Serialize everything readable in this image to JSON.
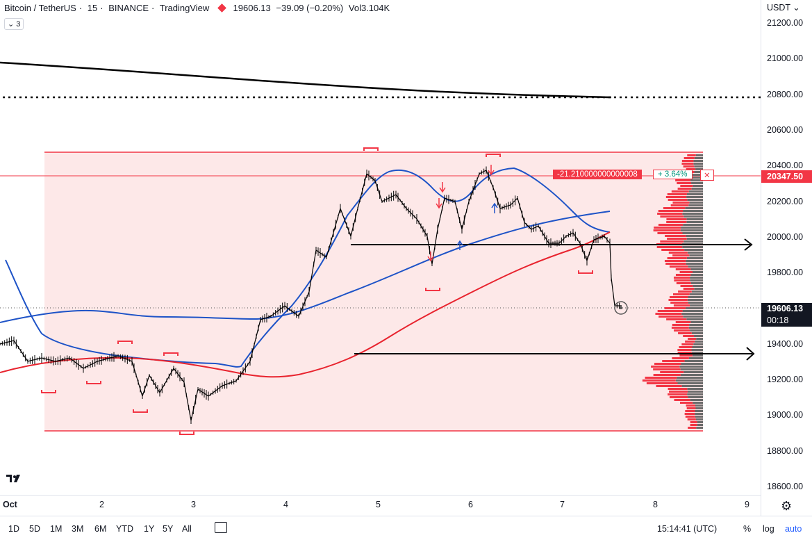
{
  "header": {
    "symbol": "Bitcoin / TetherUS",
    "interval": "15",
    "exchange": "BINANCE",
    "platform": "TradingView",
    "last_price": "19606.13",
    "change": "−39.09 (−0.20%)",
    "volume_label": "Vol",
    "volume": "3.104K",
    "indicators_count": "3"
  },
  "price_axis": {
    "currency": "USDT",
    "ticks": [
      "21200.00",
      "21000.00",
      "20800.00",
      "20600.00",
      "20400.00",
      "20200.00",
      "20000.00",
      "19800.00",
      "19600.00",
      "19400.00",
      "19200.00",
      "19000.00",
      "18800.00",
      "18600.00"
    ],
    "marker_price": "20347.50",
    "current_price": "19606.13",
    "countdown": "00:18"
  },
  "position_box": {
    "pnl": "-21.210000000000008",
    "percent": "+ 3.64%",
    "close_symbol": "✕"
  },
  "time_axis": {
    "labels": [
      "Oct",
      "2",
      "3",
      "4",
      "5",
      "6",
      "7",
      "8",
      "9"
    ]
  },
  "toolbar": {
    "ranges": [
      "1D",
      "5D",
      "1M",
      "3M",
      "6M",
      "YTD",
      "1Y",
      "5Y",
      "All"
    ],
    "clock": "15:14:41 (UTC)",
    "percent": "%",
    "log": "log",
    "auto": "auto"
  },
  "colors": {
    "up_accent": "#f23645",
    "zone_fill": "#fde8e8",
    "ma_blue": "#1e53c7",
    "ma_red": "#e8232e",
    "ma_black": "#000000",
    "countdown_bg": "#131722"
  },
  "icons": [
    "tradingview-logo-icon",
    "settings-gear-icon",
    "compare-range-icon",
    "chevron-down-icon",
    "circle-cursor-icon"
  ]
}
